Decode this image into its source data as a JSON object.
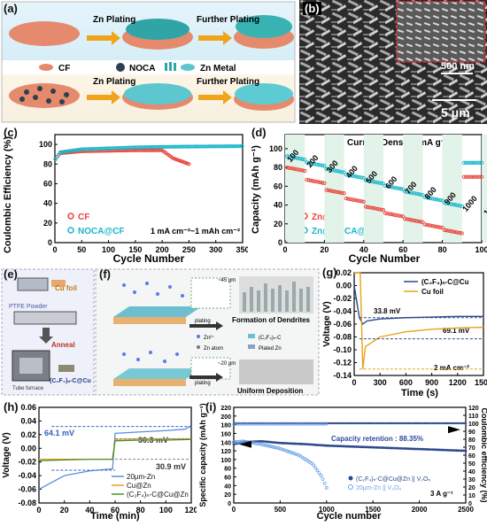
{
  "panel_a": {
    "label": "(a)",
    "steps": [
      "Zn Plating",
      "Further Plating",
      "Zn Plating",
      "Further Plating"
    ],
    "legend": [
      "CF",
      "NOCA",
      "Zn Metal"
    ]
  },
  "panel_b": {
    "label": "(b)",
    "scale_inset": "500 nm",
    "scale_main": "5 μm"
  },
  "panel_c": {
    "label": "(c)",
    "ylabel": "Coulombic Efficiency (%)",
    "xlabel": "Cycle Number",
    "annotation": "1 mA cm⁻²~1 mAh cm⁻²",
    "yticks": [
      "0",
      "20",
      "40",
      "60",
      "80",
      "100"
    ],
    "xticks": [
      "0",
      "50",
      "100",
      "150",
      "200",
      "250",
      "300",
      "350"
    ],
    "legend": [
      "CF",
      "NOCA@CF"
    ]
  },
  "panel_d": {
    "label": "(d)",
    "ylabel": "Capacity (mAh g⁻¹)",
    "xlabel": "Cycle Number",
    "title": "Current Density (mA g⁻¹)",
    "rates": [
      "100",
      "200",
      "300",
      "400",
      "500",
      "600",
      "700",
      "800",
      "900",
      "1000",
      "100"
    ],
    "yticks": [
      "0",
      "20",
      "40",
      "60",
      "80",
      "100"
    ],
    "xticks": [
      "0",
      "20",
      "40",
      "60",
      "80",
      "100"
    ],
    "legend": [
      "Zn@CF",
      "Zn@NOCA@CF"
    ]
  },
  "panel_e": {
    "label": "(e)",
    "texts": [
      "Cu foil",
      "PTFE Powder",
      "Anneal",
      "(C₂F₄)ₙ-C@Cu",
      "Tube furnace"
    ]
  },
  "panel_f": {
    "label": "(f)",
    "texts": [
      "Formation of Dendrites",
      "Uniform Deposition",
      "plating",
      "plating",
      "~45 μm",
      "~20 μm"
    ],
    "legend": [
      "Zn²⁺",
      "(C₂F₄)ₙ-C",
      "Zn atom",
      "Plated Zn"
    ]
  },
  "panel_g": {
    "label": "(g)",
    "ylabel": "Voltage (V)",
    "xlabel": "Time (s)",
    "legend": [
      "(C₂F₄)ₙ-C@Cu",
      "Cu foil"
    ],
    "annotations": [
      "33.8 mV",
      "69.1 mV",
      "2 mA cm⁻²"
    ],
    "yticks": [
      "0.02",
      "0.00",
      "-0.02",
      "-0.04",
      "-0.06",
      "-0.08",
      "-0.10",
      "-0.12",
      "-0.14"
    ],
    "xticks": [
      "0",
      "300",
      "600",
      "900",
      "1200",
      "1500"
    ]
  },
  "panel_h": {
    "label": "(h)",
    "ylabel": "Voltage (V)",
    "xlabel": "Time (min)",
    "legend": [
      "20μm-Zn",
      "Cu@Zn",
      "(C₂F₄)ₙ-C@Cu@Zn"
    ],
    "annotations": [
      "64.1 mV",
      "30.3 mV",
      "30.9 mV"
    ],
    "yticks": [
      "0.06",
      "0.04",
      "0.02",
      "0.00",
      "-0.02",
      "-0.04",
      "-0.06",
      "-0.08"
    ],
    "xticks": [
      "0",
      "20",
      "40",
      "60",
      "80",
      "100",
      "120"
    ]
  },
  "panel_i": {
    "label": "(i)",
    "ylabel": "Specific capacity (mAh g⁻¹)",
    "ylabel2": "Coulombic efficiency (%)",
    "xlabel": "Cycle number",
    "annotation": "Capacity retention : 88.35%",
    "rate": "3 A g⁻¹",
    "legend": [
      "(C₂F₄)ₙ-C@Cu@Zn || V₂O₅",
      "20μm-Zn || V₂O₅"
    ],
    "yticks": [
      "0",
      "20",
      "40",
      "60",
      "80",
      "100",
      "120",
      "140",
      "160",
      "180",
      "200",
      "220"
    ],
    "yticks2": [
      "0",
      "10",
      "20",
      "30",
      "40",
      "50",
      "60",
      "70",
      "80",
      "90",
      "100",
      "110",
      "120"
    ],
    "xticks": [
      "0",
      "500",
      "1000",
      "1500",
      "2000",
      "2500"
    ]
  },
  "chart_data": [
    {
      "id": "c",
      "type": "scatter",
      "xlabel": "Cycle Number",
      "ylabel": "Coulombic Efficiency (%)",
      "xlim": [
        0,
        350
      ],
      "ylim": [
        0,
        110
      ],
      "series": [
        {
          "name": "CF",
          "x": [
            0,
            10,
            50,
            100,
            150,
            200,
            210,
            220,
            230,
            240,
            250
          ],
          "y": [
            85,
            91,
            93,
            93.5,
            94,
            94,
            90,
            86,
            84,
            82,
            80
          ]
        },
        {
          "name": "NOCA@CF",
          "x": [
            0,
            10,
            50,
            100,
            150,
            200,
            250,
            300,
            350
          ],
          "y": [
            84,
            92,
            95,
            96,
            97,
            97.5,
            97.8,
            98,
            98.2
          ]
        }
      ],
      "color": {
        "CF": "#e8443a",
        "NOCA@CF": "#19b6c8"
      }
    },
    {
      "id": "d",
      "type": "scatter",
      "xlabel": "Cycle Number",
      "ylabel": "Capacity (mAh g⁻¹)",
      "xlim": [
        0,
        100
      ],
      "ylim": [
        0,
        115
      ],
      "series": [
        {
          "name": "Zn@CF",
          "x": [
            1,
            10,
            20,
            30,
            40,
            50,
            60,
            70,
            80,
            90,
            91,
            100
          ],
          "y": [
            80,
            68,
            57,
            48,
            39,
            32,
            26,
            20,
            14,
            9,
            70,
            70
          ]
        },
        {
          "name": "Zn@NOCA@CF",
          "x": [
            1,
            10,
            20,
            30,
            40,
            50,
            60,
            70,
            80,
            90,
            91,
            100
          ],
          "y": [
            92,
            86,
            79,
            73,
            67,
            61,
            55,
            49,
            43,
            37,
            85,
            85
          ]
        }
      ],
      "color": {
        "Zn@CF": "#e8443a",
        "Zn@NOCA@CF": "#19b6c8"
      }
    },
    {
      "id": "g",
      "type": "line",
      "xlabel": "Time (s)",
      "ylabel": "Voltage (V)",
      "xlim": [
        0,
        1500
      ],
      "ylim": [
        -0.14,
        0.02
      ],
      "series": [
        {
          "name": "(C₂F₄)ₙ-C@Cu",
          "x": [
            0,
            60,
            100,
            150,
            300,
            600,
            900,
            1200,
            1500
          ],
          "y": [
            0,
            -0.05,
            -0.06,
            -0.055,
            -0.052,
            -0.05,
            -0.049,
            -0.048,
            -0.048
          ]
        },
        {
          "name": "Cu foil",
          "x": [
            0,
            70,
            100,
            130,
            300,
            600,
            900,
            1200,
            1500
          ],
          "y": [
            0.02,
            0.02,
            -0.13,
            -0.095,
            -0.08,
            -0.072,
            -0.068,
            -0.066,
            -0.065
          ]
        }
      ]
    },
    {
      "id": "h",
      "type": "line",
      "xlabel": "Time (min)",
      "ylabel": "Voltage (V)",
      "xlim": [
        0,
        120
      ],
      "ylim": [
        -0.08,
        0.06
      ],
      "series": [
        {
          "name": "20μm-Zn",
          "x": [
            0,
            20,
            40,
            58,
            60,
            80,
            100,
            115,
            118,
            120
          ],
          "y": [
            -0.06,
            -0.04,
            -0.033,
            -0.03,
            0.022,
            0.024,
            0.026,
            0.028,
            0.031,
            0.032
          ]
        },
        {
          "name": "Cu@Zn",
          "x": [
            0,
            20,
            40,
            58,
            60,
            80,
            100,
            120
          ],
          "y": [
            -0.016,
            -0.016,
            -0.016,
            -0.016,
            0.013,
            0.014,
            0.014,
            0.014
          ]
        },
        {
          "name": "(C₂F₄)ₙ-C@Cu@Zn",
          "x": [
            0,
            20,
            40,
            58,
            60,
            80,
            100,
            120
          ],
          "y": [
            -0.018,
            -0.017,
            -0.016,
            -0.016,
            0.011,
            0.012,
            0.012,
            0.013
          ]
        }
      ]
    },
    {
      "id": "i",
      "type": "scatter",
      "xlabel": "Cycle number",
      "ylabel": "Specific capacity (mAh g⁻¹)",
      "xlim": [
        0,
        2500
      ],
      "ylim": [
        0,
        220
      ],
      "series": [
        {
          "name": "(C₂F₄)ₙ-C@Cu@Zn || V₂O₅",
          "x": [
            0,
            100,
            300,
            500,
            800,
            1000,
            1500,
            2000,
            2500
          ],
          "y": [
            135,
            140,
            142,
            138,
            135,
            132,
            128,
            124,
            120
          ]
        },
        {
          "name": "20μm-Zn || V₂O₅",
          "x": [
            0,
            100,
            300,
            500,
            700,
            850,
            950,
            1000
          ],
          "y": [
            140,
            142,
            135,
            125,
            110,
            90,
            60,
            35
          ]
        },
        {
          "name": "CE (C₂F₄)ₙ-C@Cu@Zn",
          "x": [
            0,
            500,
            1000,
            1500,
            2000,
            2500
          ],
          "y": [
            100,
            100,
            100,
            100,
            100,
            100
          ]
        },
        {
          "name": "CE 20μm-Zn",
          "x": [
            0,
            500,
            1000
          ],
          "y": [
            100,
            100,
            100
          ]
        }
      ]
    }
  ]
}
